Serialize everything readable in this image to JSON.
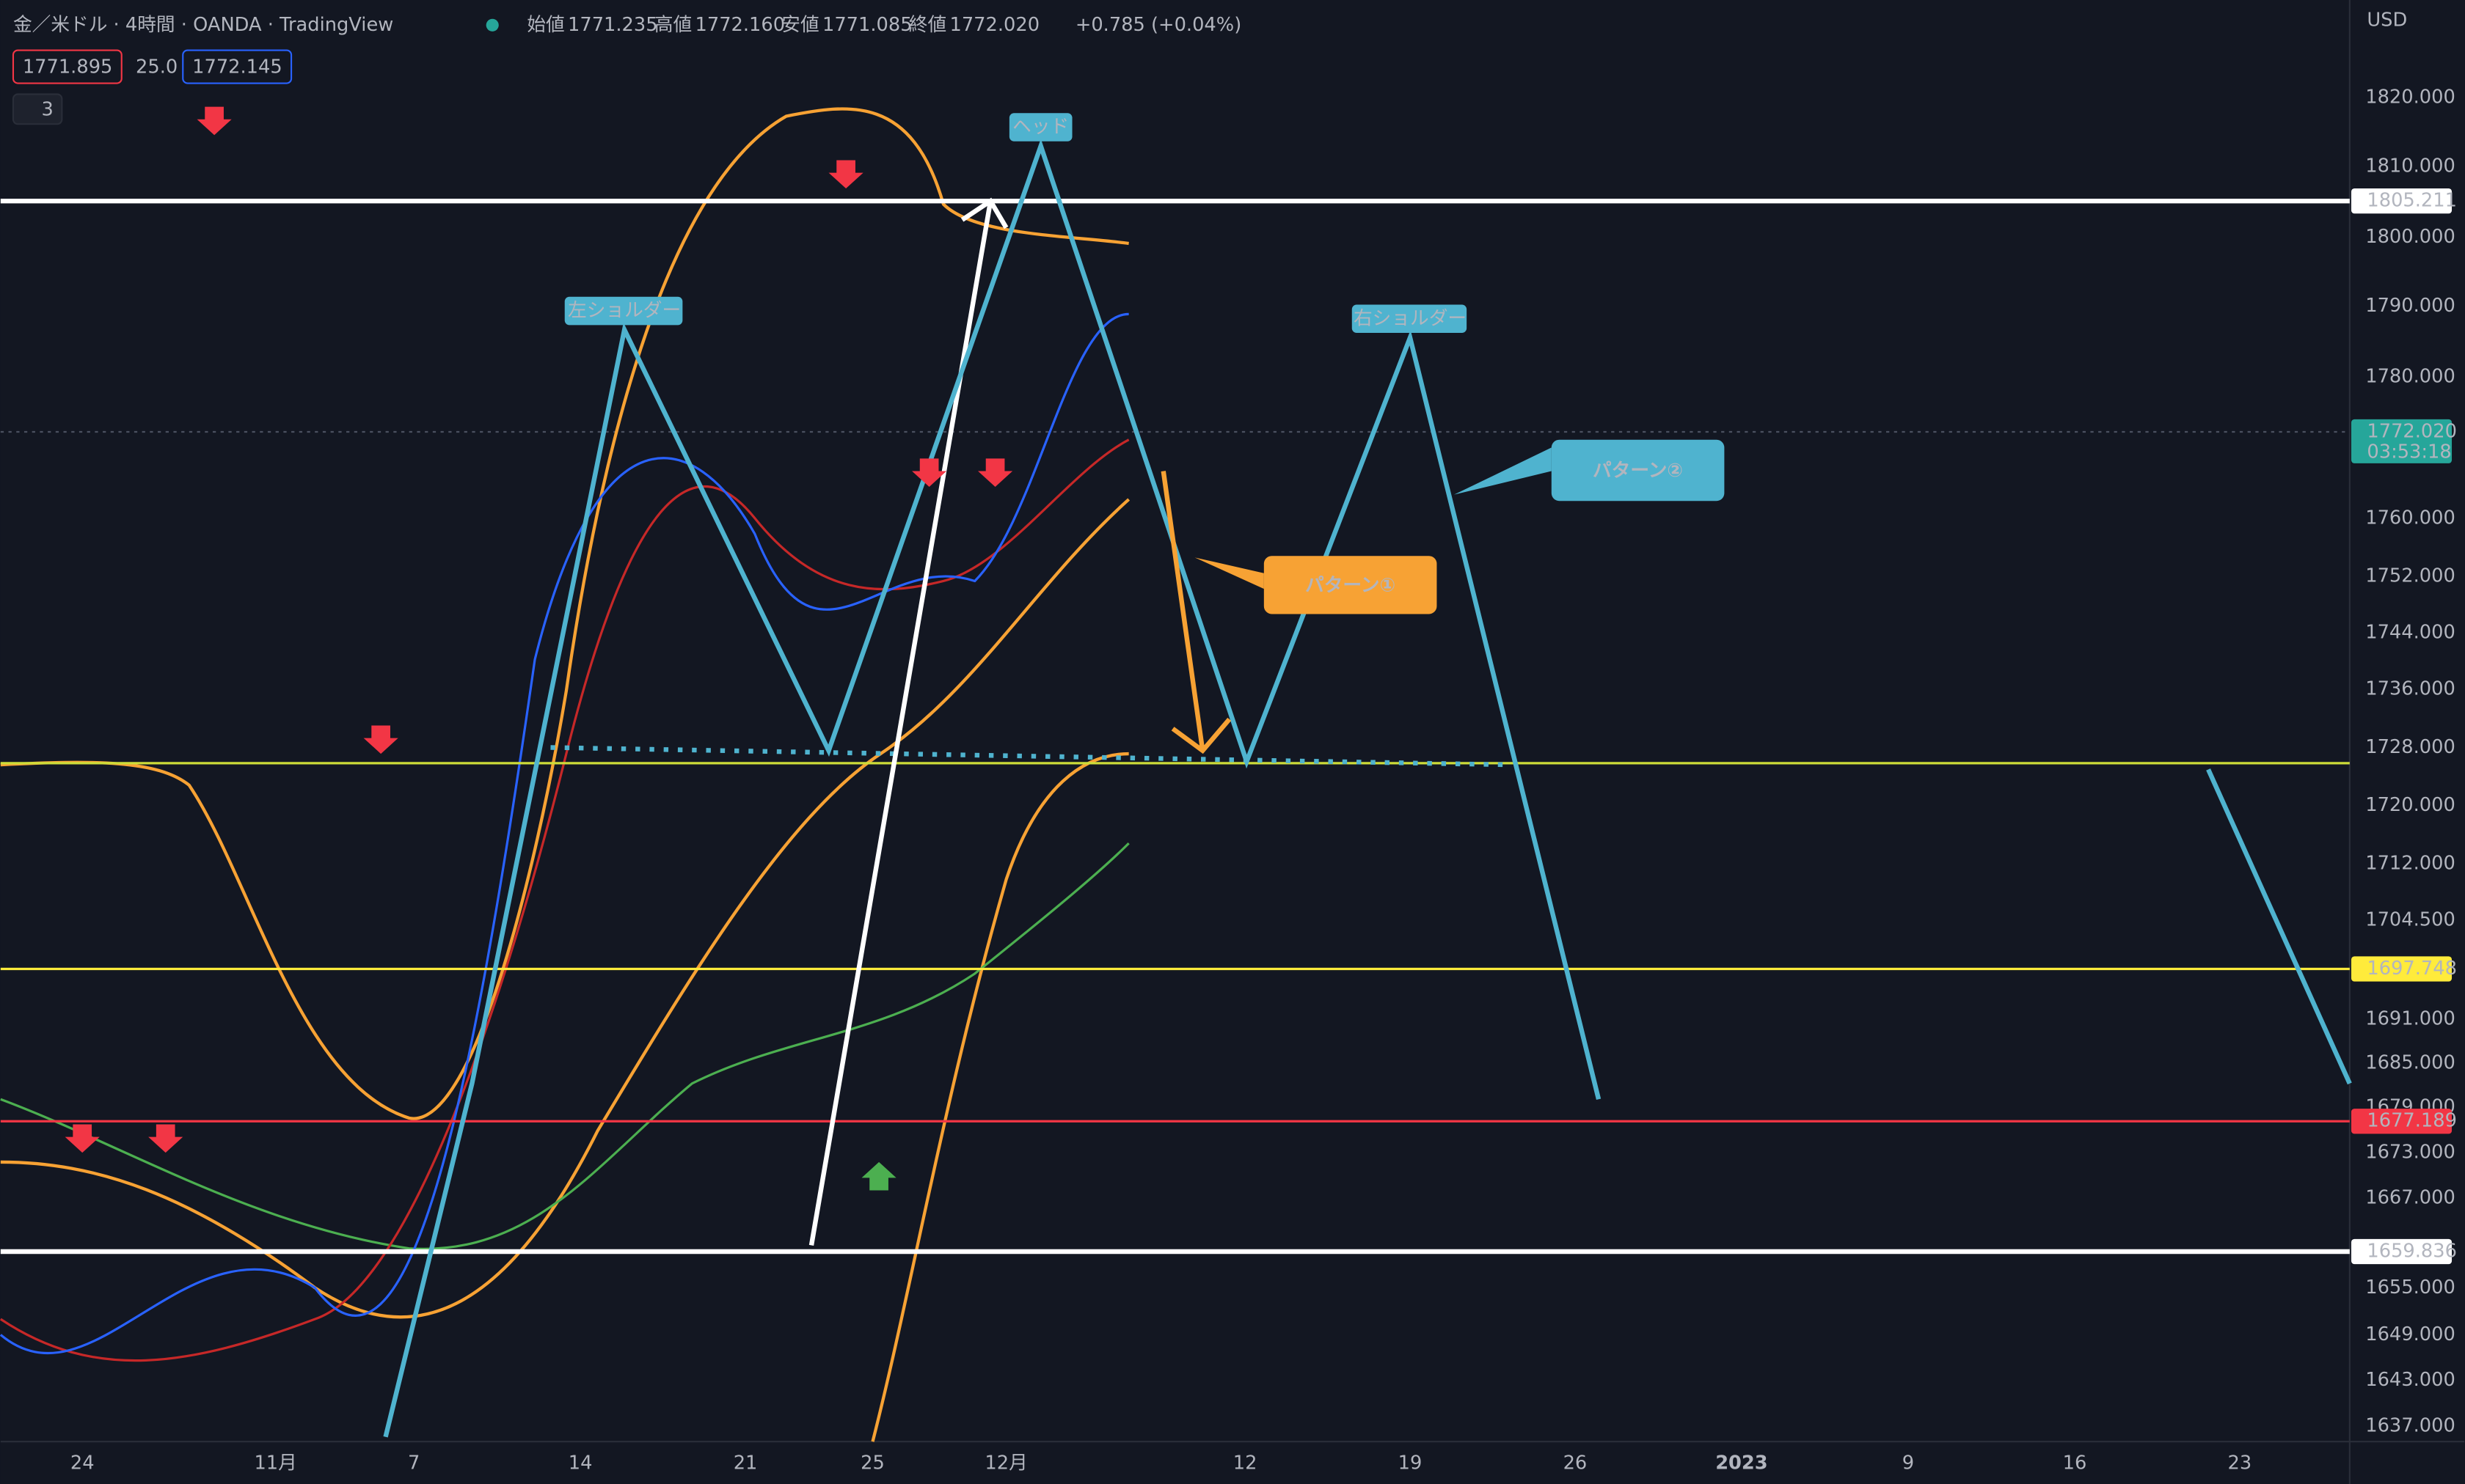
{
  "header": {
    "symbol": "金／米ドル · 4時間 · OANDA · TradingView",
    "ohlc": [
      {
        "label": "始値",
        "value": "1771.235"
      },
      {
        "label": "高値",
        "value": "1772.160"
      },
      {
        "label": "安値",
        "value": "1771.085"
      },
      {
        "label": "終値",
        "value": "1772.020"
      }
    ],
    "change": "+0.785 (+0.04%)"
  },
  "quote": {
    "bid": "1771.895",
    "spread": "25.0",
    "ask": "1772.145",
    "indicators": "3"
  },
  "currency": "USD",
  "price_axis": [
    "1820.000",
    "1810.000",
    "1800.000",
    "1790.000",
    "1780.000",
    "1760.000",
    "1752.000",
    "1744.000",
    "1736.000",
    "1728.000",
    "1720.000",
    "1712.000",
    "1704.500",
    "1691.000",
    "1685.000",
    "1679.000",
    "1673.000",
    "1667.000",
    "1655.000",
    "1649.000",
    "1643.000",
    "1637.000"
  ],
  "price_tags": [
    {
      "label": "1805.211"
    },
    {
      "label": "1772.020",
      "timer": "03:53:18"
    },
    {
      "label": "1697.748"
    },
    {
      "label": "1677.189"
    },
    {
      "label": "1659.836"
    }
  ],
  "date_axis": [
    "24",
    "11月",
    "7",
    "14",
    "21",
    "25",
    "12月",
    "12",
    "19",
    "26",
    "2023",
    "9",
    "16",
    "23"
  ],
  "annotations": [
    "ヘッド",
    "左ショルダー",
    "右ショルダー",
    "パターン①",
    "パターン②"
  ]
}
